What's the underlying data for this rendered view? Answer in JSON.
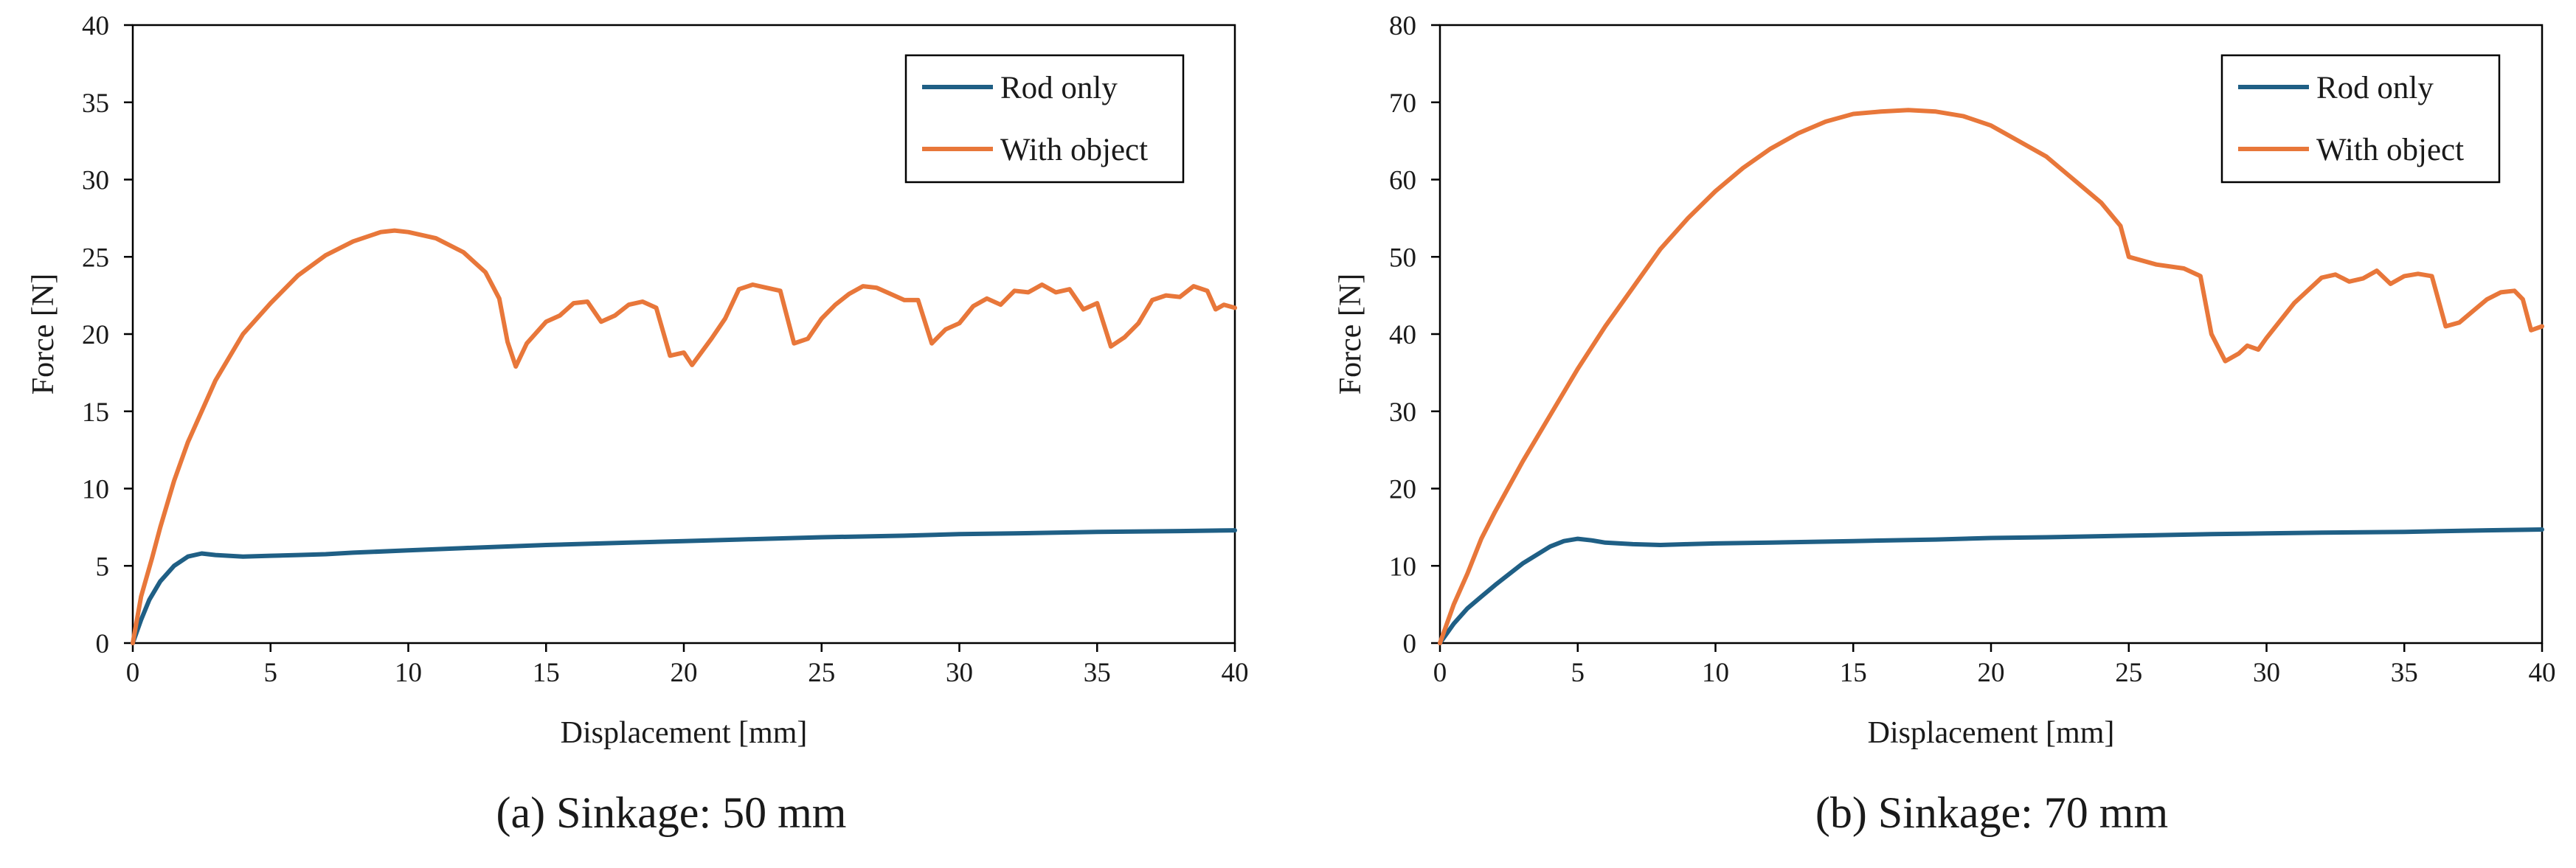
{
  "colors": {
    "rod_only": "#1f5f85",
    "with_object": "#e8773a",
    "axis": "#000000"
  },
  "chart_data": [
    {
      "type": "line",
      "caption": "(a) Sinkage: 50 mm",
      "xlabel": "Displacement [mm]",
      "ylabel": "Force [N]",
      "xlim": [
        0,
        40
      ],
      "ylim": [
        0,
        40
      ],
      "xticks": [
        0,
        5,
        10,
        15,
        20,
        25,
        30,
        35,
        40
      ],
      "yticks": [
        0,
        5,
        10,
        15,
        20,
        25,
        30,
        35,
        40
      ],
      "legend": "top-right",
      "grid": false,
      "series": [
        {
          "name": "Rod only",
          "color": "#1f5f85",
          "points": [
            [
              0,
              0
            ],
            [
              0.3,
              1.5
            ],
            [
              0.6,
              2.8
            ],
            [
              1.0,
              4.0
            ],
            [
              1.5,
              5.0
            ],
            [
              2.0,
              5.6
            ],
            [
              2.5,
              5.8
            ],
            [
              3,
              5.7
            ],
            [
              4,
              5.6
            ],
            [
              5,
              5.65
            ],
            [
              6,
              5.7
            ],
            [
              7,
              5.75
            ],
            [
              8,
              5.85
            ],
            [
              10,
              6.0
            ],
            [
              12,
              6.15
            ],
            [
              15,
              6.35
            ],
            [
              18,
              6.5
            ],
            [
              20,
              6.6
            ],
            [
              22,
              6.7
            ],
            [
              25,
              6.85
            ],
            [
              28,
              6.95
            ],
            [
              30,
              7.05
            ],
            [
              32,
              7.1
            ],
            [
              35,
              7.2
            ],
            [
              38,
              7.25
            ],
            [
              40,
              7.3
            ]
          ]
        },
        {
          "name": "With object",
          "color": "#e8773a",
          "points": [
            [
              0,
              0
            ],
            [
              0.3,
              3
            ],
            [
              0.7,
              5.5
            ],
            [
              1,
              7.5
            ],
            [
              1.5,
              10.5
            ],
            [
              2,
              13
            ],
            [
              3,
              17
            ],
            [
              4,
              20
            ],
            [
              5,
              22
            ],
            [
              6,
              23.8
            ],
            [
              7,
              25.1
            ],
            [
              8,
              26
            ],
            [
              9,
              26.6
            ],
            [
              9.5,
              26.7
            ],
            [
              10,
              26.6
            ],
            [
              11,
              26.2
            ],
            [
              12,
              25.3
            ],
            [
              12.8,
              24
            ],
            [
              13.3,
              22.3
            ],
            [
              13.6,
              19.5
            ],
            [
              13.9,
              17.9
            ],
            [
              14.3,
              19.4
            ],
            [
              15,
              20.8
            ],
            [
              15.5,
              21.2
            ],
            [
              16,
              22.0
            ],
            [
              16.5,
              22.1
            ],
            [
              17,
              20.8
            ],
            [
              17.5,
              21.2
            ],
            [
              18,
              21.9
            ],
            [
              18.5,
              22.1
            ],
            [
              19,
              21.7
            ],
            [
              19.5,
              18.6
            ],
            [
              20,
              18.8
            ],
            [
              20.3,
              18.0
            ],
            [
              21,
              19.7
            ],
            [
              21.5,
              21.0
            ],
            [
              22,
              22.9
            ],
            [
              22.5,
              23.2
            ],
            [
              23,
              23.0
            ],
            [
              23.5,
              22.8
            ],
            [
              24,
              19.4
            ],
            [
              24.5,
              19.7
            ],
            [
              25,
              21.0
            ],
            [
              25.5,
              21.9
            ],
            [
              26,
              22.6
            ],
            [
              26.5,
              23.1
            ],
            [
              27,
              23.0
            ],
            [
              27.5,
              22.6
            ],
            [
              28,
              22.2
            ],
            [
              28.5,
              22.2
            ],
            [
              29,
              19.4
            ],
            [
              29.5,
              20.3
            ],
            [
              30,
              20.7
            ],
            [
              30.5,
              21.8
            ],
            [
              31,
              22.3
            ],
            [
              31.5,
              21.9
            ],
            [
              32,
              22.8
            ],
            [
              32.5,
              22.7
            ],
            [
              33,
              23.2
            ],
            [
              33.5,
              22.7
            ],
            [
              34,
              22.9
            ],
            [
              34.5,
              21.6
            ],
            [
              35,
              22.0
            ],
            [
              35.5,
              19.2
            ],
            [
              36,
              19.8
            ],
            [
              36.5,
              20.7
            ],
            [
              37,
              22.2
            ],
            [
              37.5,
              22.5
            ],
            [
              38,
              22.4
            ],
            [
              38.5,
              23.1
            ],
            [
              39,
              22.8
            ],
            [
              39.3,
              21.6
            ],
            [
              39.6,
              21.9
            ],
            [
              40,
              21.7
            ]
          ]
        }
      ]
    },
    {
      "type": "line",
      "caption": "(b) Sinkage: 70 mm",
      "xlabel": "Displacement [mm]",
      "ylabel": "Force [N]",
      "xlim": [
        0,
        40
      ],
      "ylim": [
        0,
        80
      ],
      "xticks": [
        0,
        5,
        10,
        15,
        20,
        25,
        30,
        35,
        40
      ],
      "yticks": [
        0,
        10,
        20,
        30,
        40,
        50,
        60,
        70,
        80
      ],
      "legend": "top-right",
      "grid": false,
      "series": [
        {
          "name": "Rod only",
          "color": "#1f5f85",
          "points": [
            [
              0,
              0
            ],
            [
              0.5,
              2.5
            ],
            [
              1,
              4.5
            ],
            [
              1.5,
              6.0
            ],
            [
              2,
              7.5
            ],
            [
              3,
              10.3
            ],
            [
              4,
              12.5
            ],
            [
              4.5,
              13.2
            ],
            [
              5,
              13.5
            ],
            [
              5.5,
              13.3
            ],
            [
              6,
              13.0
            ],
            [
              7,
              12.8
            ],
            [
              8,
              12.7
            ],
            [
              9,
              12.8
            ],
            [
              10,
              12.9
            ],
            [
              12,
              13.0
            ],
            [
              15,
              13.2
            ],
            [
              18,
              13.4
            ],
            [
              20,
              13.6
            ],
            [
              22,
              13.7
            ],
            [
              25,
              13.9
            ],
            [
              28,
              14.1
            ],
            [
              30,
              14.2
            ],
            [
              32,
              14.3
            ],
            [
              35,
              14.4
            ],
            [
              38,
              14.6
            ],
            [
              40,
              14.7
            ]
          ]
        },
        {
          "name": "With object",
          "color": "#e8773a",
          "points": [
            [
              0,
              0
            ],
            [
              0.5,
              5
            ],
            [
              1,
              9
            ],
            [
              1.5,
              13.5
            ],
            [
              2,
              17
            ],
            [
              3,
              23.5
            ],
            [
              4,
              29.5
            ],
            [
              5,
              35.5
            ],
            [
              6,
              41
            ],
            [
              7,
              46
            ],
            [
              8,
              51
            ],
            [
              9,
              55
            ],
            [
              10,
              58.5
            ],
            [
              11,
              61.5
            ],
            [
              12,
              64
            ],
            [
              13,
              66
            ],
            [
              14,
              67.5
            ],
            [
              15,
              68.5
            ],
            [
              16,
              68.8
            ],
            [
              17,
              69
            ],
            [
              18,
              68.8
            ],
            [
              19,
              68.2
            ],
            [
              20,
              67
            ],
            [
              21,
              65
            ],
            [
              22,
              63
            ],
            [
              23,
              60
            ],
            [
              24,
              57
            ],
            [
              24.7,
              54
            ],
            [
              25,
              50
            ],
            [
              26,
              49
            ],
            [
              27,
              48.5
            ],
            [
              27.6,
              47.5
            ],
            [
              28,
              40
            ],
            [
              28.5,
              36.5
            ],
            [
              29,
              37.5
            ],
            [
              29.3,
              38.5
            ],
            [
              29.7,
              38
            ],
            [
              30,
              39.5
            ],
            [
              31,
              44
            ],
            [
              32,
              47.3
            ],
            [
              32.5,
              47.7
            ],
            [
              33,
              46.8
            ],
            [
              33.5,
              47.2
            ],
            [
              34,
              48.2
            ],
            [
              34.5,
              46.5
            ],
            [
              35,
              47.5
            ],
            [
              35.5,
              47.8
            ],
            [
              36,
              47.5
            ],
            [
              36.5,
              41
            ],
            [
              37,
              41.5
            ],
            [
              37.5,
              43
            ],
            [
              38,
              44.5
            ],
            [
              38.5,
              45.4
            ],
            [
              39,
              45.6
            ],
            [
              39.3,
              44.5
            ],
            [
              39.6,
              40.5
            ],
            [
              40,
              41
            ]
          ]
        }
      ]
    }
  ]
}
